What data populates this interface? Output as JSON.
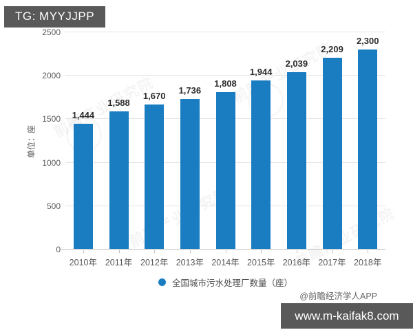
{
  "header": {
    "tag": "TG: MYYJJPP"
  },
  "footer": {
    "website": "www.m-kaifak8.com"
  },
  "watermark": {
    "brand": "前瞻产业研究院",
    "attribution": "@前瞻经济学人APP"
  },
  "colors": {
    "bar": "#1a7cc1",
    "badge_background": "#595959",
    "gridline": "#e4e4e4",
    "axis_text": "#595959"
  },
  "chart_data": {
    "type": "bar",
    "title": "",
    "categories": [
      "2010年",
      "2011年",
      "2012年",
      "2013年",
      "2014年",
      "2015年",
      "2016年",
      "2017年",
      "2018年"
    ],
    "values": [
      1444,
      1588,
      1670,
      1736,
      1808,
      1944,
      2039,
      2209,
      2300
    ],
    "labels": [
      "1,444",
      "1,588",
      "1,670",
      "1,736",
      "1,808",
      "1,944",
      "2,039",
      "2,209",
      "2,300"
    ],
    "xlabel": "",
    "ylabel": "单位：座",
    "ylim": [
      0,
      2500
    ],
    "yticks": [
      0,
      500,
      1000,
      1500,
      2000,
      2500
    ],
    "grid": true,
    "legend": "全国城市污水处理厂数量（座）",
    "legend_position": "bottom",
    "bar_color": "#1a7cc1"
  }
}
